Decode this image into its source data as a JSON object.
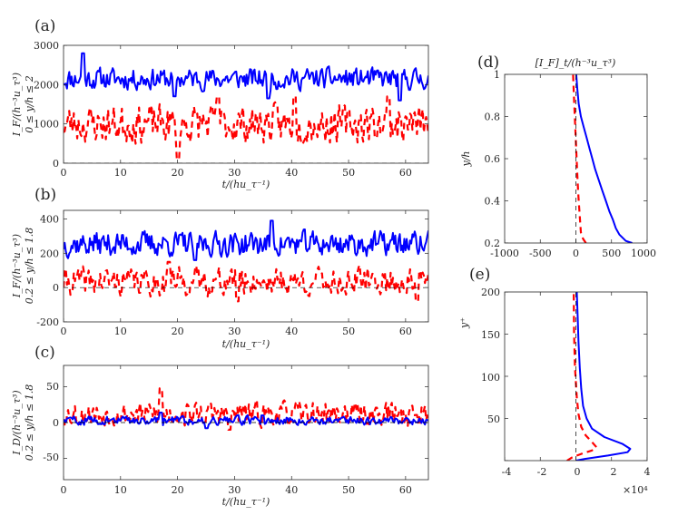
{
  "figure": {
    "panels": [
      {
        "label": "(a)",
        "ylabel": "I_F/(h⁻³u_τ³)",
        "ylabel2": "0 ≤ y/h ≤ 2",
        "xlabel": "t/(hu_τ⁻¹)",
        "xticks": [
          "0",
          "10",
          "20",
          "30",
          "40",
          "50",
          "60"
        ],
        "yticks": [
          "0",
          "1000",
          "2000",
          "3000"
        ]
      },
      {
        "label": "(b)",
        "ylabel": "I_F/(h⁻³u_τ³)",
        "ylabel2": "0.2 ≤ y/h ≤ 1.8",
        "xlabel": "t/(hu_τ⁻¹)",
        "xticks": [
          "0",
          "10",
          "20",
          "30",
          "40",
          "50",
          "60"
        ],
        "yticks": [
          "-200",
          "0",
          "200",
          "400"
        ]
      },
      {
        "label": "(c)",
        "ylabel": "I_D/(h⁻³u_τ³)",
        "ylabel2": "0.2 ≤ y/h ≤ 1.8",
        "xlabel": "t/(hu_τ⁻¹)",
        "xticks": [
          "0",
          "10",
          "20",
          "30",
          "40",
          "50",
          "60"
        ],
        "yticks": [
          "-50",
          "0",
          "50"
        ]
      },
      {
        "label": "(d)",
        "title": "[I_F]_t/(h⁻³u_τ³)",
        "ylabel": "y/h",
        "xticks": [
          "-1000",
          "-500",
          "0",
          "500",
          "1000"
        ],
        "yticks": [
          "0.2",
          "0.4",
          "0.6",
          "0.8",
          "1"
        ]
      },
      {
        "label": "(e)",
        "ylabel": "y⁺",
        "xticks": [
          "-4",
          "-2",
          "0",
          "2",
          "4"
        ],
        "yticks": [
          "50",
          "100",
          "150",
          "200"
        ],
        "multiplier": "×10⁴"
      }
    ]
  },
  "chart_data": [
    {
      "type": "line",
      "panel": "a",
      "xlabel": "t/(hu_τ⁻¹)",
      "ylabel": "I_F/(h⁻³u_τ³), 0 ≤ y/h ≤ 2",
      "xlim": [
        0,
        64
      ],
      "ylim": [
        0,
        3000
      ],
      "series": [
        {
          "name": "blue-solid",
          "color": "#0000ff",
          "style": "solid",
          "mean": 2150,
          "amplitude": 320,
          "seed": 11,
          "peaks": [
            [
              3.5,
              2800
            ],
            [
              19.5,
              1700
            ],
            [
              36,
              1650
            ],
            [
              59,
              1600
            ]
          ]
        },
        {
          "name": "red-dashed",
          "color": "#ff0000",
          "style": "dashed",
          "mean": 1000,
          "amplitude": 560,
          "seed": 23,
          "peaks": [
            [
              20,
              100
            ],
            [
              27,
              1700
            ],
            [
              40.5,
              1700
            ],
            [
              57,
              1700
            ]
          ]
        },
        {
          "name": "zero-reference",
          "color": "#000000",
          "style": "dashed-thin",
          "constant": 0
        }
      ]
    },
    {
      "type": "line",
      "panel": "b",
      "xlabel": "t/(hu_τ⁻¹)",
      "ylabel": "I_F/(h⁻³u_τ³), 0.2 ≤ y/h ≤ 1.8",
      "xlim": [
        0,
        64
      ],
      "ylim": [
        -200,
        450
      ],
      "series": [
        {
          "name": "blue-solid",
          "color": "#0000ff",
          "style": "solid",
          "mean": 255,
          "amplitude": 85,
          "seed": 37,
          "peaks": [
            [
              36.5,
              390
            ],
            [
              23,
              160
            ]
          ]
        },
        {
          "name": "red-dashed",
          "color": "#ff0000",
          "style": "dashed",
          "mean": 35,
          "amplitude": 95,
          "seed": 41,
          "peaks": [
            [
              18.5,
              150
            ],
            [
              62,
              -80
            ],
            [
              30.5,
              -80
            ]
          ]
        },
        {
          "name": "zero-reference",
          "color": "#000000",
          "style": "dashed-thin",
          "constant": 0
        }
      ]
    },
    {
      "type": "line",
      "panel": "c",
      "xlabel": "t/(hu_τ⁻¹)",
      "ylabel": "I_D/(h⁻³u_τ³), 0.2 ≤ y/h ≤ 1.8",
      "xlim": [
        0,
        64
      ],
      "ylim": [
        -80,
        80
      ],
      "series": [
        {
          "name": "red-dashed",
          "color": "#ff0000",
          "style": "dashed",
          "mean": 12,
          "amplitude": 20,
          "seed": 53,
          "peaks": [
            [
              17,
              48
            ],
            [
              29,
              -10
            ]
          ]
        },
        {
          "name": "blue-solid",
          "color": "#0000ff",
          "style": "solid",
          "mean": 3,
          "amplitude": 7,
          "seed": 59,
          "peaks": [
            [
              17,
              14
            ],
            [
              25,
              -8
            ],
            [
              35,
              10
            ]
          ]
        },
        {
          "name": "zero-reference",
          "color": "#000000",
          "style": "dashed-thin",
          "constant": 0
        }
      ]
    },
    {
      "type": "line",
      "panel": "d",
      "title": "[I_F]_t/(h⁻³u_τ³)",
      "ylabel": "y/h",
      "xlim": [
        -1000,
        1000
      ],
      "ylim": [
        0.2,
        1.0
      ],
      "series": [
        {
          "name": "blue-solid",
          "color": "#0000ff",
          "style": "solid",
          "x": [
            790,
            700,
            610,
            560,
            520,
            470,
            420,
            370,
            320,
            270,
            230,
            190,
            150,
            110,
            70,
            40,
            20,
            5
          ],
          "y": [
            0.2,
            0.21,
            0.24,
            0.27,
            0.31,
            0.35,
            0.4,
            0.45,
            0.5,
            0.55,
            0.6,
            0.65,
            0.7,
            0.75,
            0.8,
            0.86,
            0.93,
            1.0
          ]
        },
        {
          "name": "red-dashed",
          "color": "#ff0000",
          "style": "dashed",
          "x": [
            140,
            100,
            70,
            60,
            50,
            40,
            30,
            20,
            10,
            0,
            -10,
            -20,
            -30,
            -40
          ],
          "y": [
            0.2,
            0.22,
            0.25,
            0.3,
            0.35,
            0.4,
            0.45,
            0.52,
            0.6,
            0.68,
            0.76,
            0.84,
            0.92,
            1.0
          ]
        },
        {
          "name": "zero-reference",
          "color": "#000000",
          "style": "dashed-thin",
          "x": [
            0,
            0
          ],
          "y": [
            0.2,
            1.0
          ]
        }
      ]
    },
    {
      "type": "line",
      "panel": "e",
      "ylabel": "y⁺",
      "xlim": [
        -4,
        4
      ],
      "x_multiplier": 10000,
      "ylim": [
        0,
        200
      ],
      "series": [
        {
          "name": "blue-solid",
          "color": "#0000ff",
          "style": "solid",
          "x": [
            0,
            0.5,
            1.8,
            2.9,
            3.05,
            2.6,
            1.6,
            0.9,
            0.6,
            0.4,
            0.3,
            0.22,
            0.15,
            0.1,
            0.05
          ],
          "y": [
            0,
            2,
            6,
            10,
            14,
            20,
            28,
            38,
            50,
            65,
            85,
            110,
            140,
            170,
            200
          ]
        },
        {
          "name": "red-dashed",
          "color": "#ff0000",
          "style": "dashed",
          "x": [
            -0.5,
            -0.2,
            0.3,
            0.9,
            1.15,
            0.9,
            0.55,
            0.3,
            0.15,
            0.05,
            -0.05,
            -0.1,
            -0.12
          ],
          "y": [
            0,
            4,
            8,
            12,
            16,
            22,
            30,
            40,
            55,
            75,
            110,
            150,
            200
          ]
        },
        {
          "name": "zero-reference",
          "color": "#000000",
          "style": "dashed-thin",
          "x": [
            0,
            0
          ],
          "y": [
            0,
            200
          ]
        }
      ]
    }
  ]
}
